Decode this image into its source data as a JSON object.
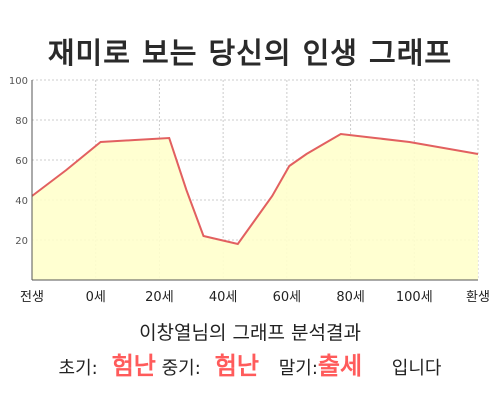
{
  "title": "재미로 보는 당신의 인생 그래프",
  "chart_data": {
    "type": "area",
    "categories": [
      "전생",
      "0세",
      "20세",
      "40세",
      "60세",
      "80세",
      "100세",
      "환생"
    ],
    "x": [
      -20,
      -10,
      0,
      10,
      20,
      25,
      30,
      35,
      40,
      45,
      50,
      55,
      60,
      65,
      70,
      80,
      90,
      100,
      110
    ],
    "values": [
      42,
      55,
      69,
      70,
      71,
      45,
      22,
      20,
      18,
      30,
      42,
      57,
      63,
      68,
      73,
      71,
      69,
      66,
      63
    ],
    "xlim": [
      -20,
      110
    ],
    "ylim": [
      0,
      100
    ],
    "yticks": [
      20,
      40,
      60,
      80,
      100
    ],
    "grid": true,
    "line_color": "#e26060",
    "fill_color": "#ffffcc",
    "grid_color": "#cccccc"
  },
  "result": {
    "heading": "이창열님의 그래프 분석결과",
    "early_label": "초기:",
    "early_value": "험난",
    "mid_label": "중기:",
    "mid_value": "험난",
    "late_label": "말기:",
    "late_value": "출세",
    "ending": "입니다"
  }
}
